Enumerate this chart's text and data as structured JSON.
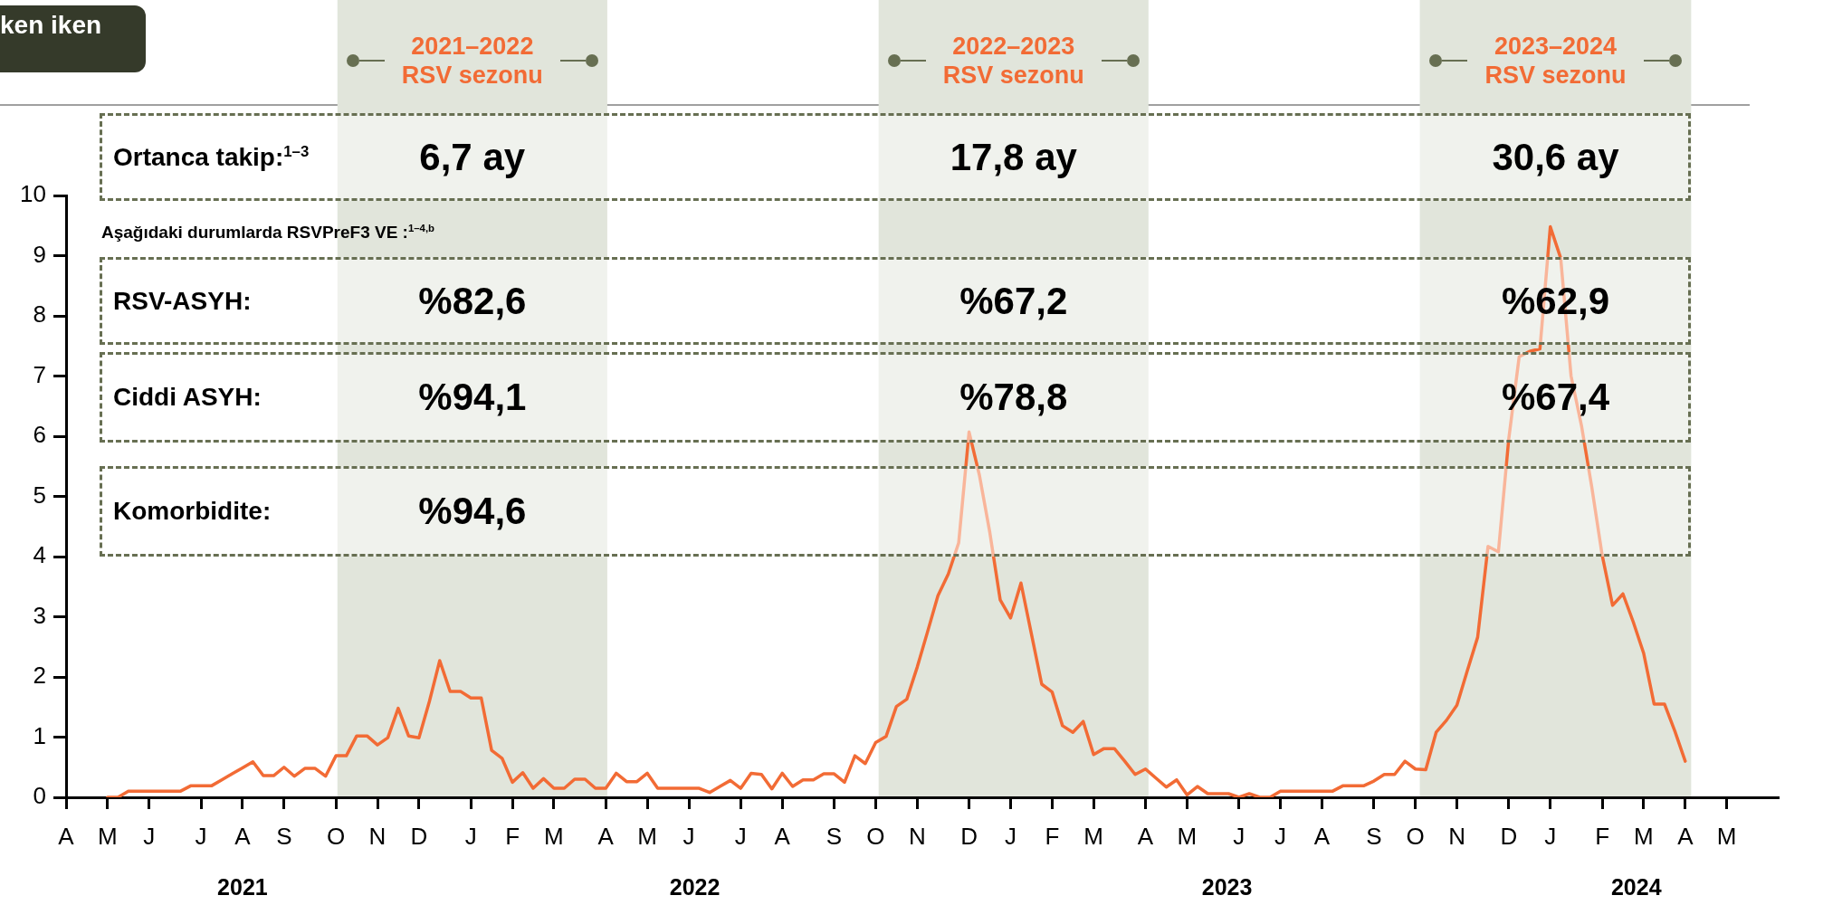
{
  "chart_data": {
    "type": "line",
    "categories": [
      "A",
      null,
      null,
      null,
      "M",
      null,
      null,
      null,
      "J",
      null,
      null,
      null,
      null,
      "J",
      null,
      null,
      null,
      "A",
      null,
      null,
      null,
      "S",
      null,
      null,
      null,
      null,
      "O",
      null,
      null,
      null,
      "N",
      null,
      null,
      null,
      "D",
      null,
      null,
      null,
      null,
      "J",
      null,
      null,
      null,
      "F",
      null,
      null,
      null,
      "M",
      null,
      null,
      null,
      null,
      "A",
      null,
      null,
      null,
      "M",
      null,
      null,
      null,
      "J",
      null,
      null,
      null,
      null,
      "J",
      null,
      null,
      null,
      "A",
      null,
      null,
      null,
      null,
      "S",
      null,
      null,
      null,
      "O",
      null,
      null,
      null,
      "N",
      null,
      null,
      null,
      null,
      "D",
      null,
      null,
      null,
      "J",
      null,
      null,
      null,
      "F",
      null,
      null,
      null,
      "M",
      null,
      null,
      null,
      null,
      "A",
      null,
      null,
      null,
      "M",
      null,
      null,
      null,
      null,
      "J",
      null,
      null,
      null,
      "J",
      null,
      null,
      null,
      "A",
      null,
      null,
      null,
      null,
      "S",
      null,
      null,
      null,
      "O",
      null,
      null,
      null,
      "N",
      null,
      null,
      null,
      null,
      "D",
      null,
      null,
      null,
      "J",
      null,
      null,
      null,
      null,
      "F",
      null,
      null,
      null,
      "M",
      null,
      null,
      null,
      "A",
      null,
      null,
      null,
      "M",
      null,
      null,
      null,
      null,
      null
    ],
    "series": [
      {
        "color": "#f26b35",
        "values": [
          null,
          null,
          null,
          null,
          0,
          0,
          0.1,
          0.1,
          0.1,
          0.1,
          0.1,
          0.1,
          0.19,
          0.19,
          0.19,
          0.29,
          0.39,
          0.49,
          0.59,
          0.36,
          0.36,
          0.5,
          0.35,
          0.48,
          0.48,
          0.35,
          0.69,
          0.69,
          1.02,
          1.02,
          0.87,
          0.99,
          1.48,
          1.02,
          0.99,
          1.59,
          2.27,
          1.76,
          1.76,
          1.65,
          1.65,
          0.78,
          0.65,
          0.25,
          0.41,
          0.15,
          0.31,
          0.15,
          0.15,
          0.3,
          0.3,
          0.15,
          0.15,
          0.4,
          0.26,
          0.26,
          0.4,
          0.15,
          0.15,
          0.15,
          0.15,
          0.15,
          0.08,
          0.18,
          0.28,
          0.15,
          0.4,
          0.38,
          0.14,
          0.4,
          0.18,
          0.29,
          0.29,
          0.39,
          0.39,
          0.25,
          0.69,
          0.56,
          0.91,
          1.01,
          1.51,
          1.63,
          2.16,
          2.75,
          3.35,
          3.71,
          4.23,
          6.07,
          5.35,
          4.4,
          3.28,
          2.98,
          3.56,
          2.72,
          1.88,
          1.75,
          1.19,
          1.08,
          1.26,
          0.71,
          0.81,
          0.81,
          0.6,
          0.38,
          0.47,
          0.32,
          0.17,
          0.29,
          0.04,
          0.18,
          0.06,
          0.06,
          0.06,
          0,
          0.06,
          0,
          0,
          0.1,
          0.1,
          0.1,
          0.1,
          0.1,
          0.1,
          0.19,
          0.19,
          0.19,
          0.27,
          0.38,
          0.38,
          0.6,
          0.47,
          0.46,
          1.08,
          1.28,
          1.53,
          2.1,
          2.66,
          4.17,
          4.08,
          5.96,
          7.32,
          7.41,
          7.45,
          9.48,
          8.96,
          7.0,
          6.18,
          5.15,
          4.02,
          3.19,
          3.38,
          2.91,
          2.39,
          1.55,
          1.55,
          1.1,
          0.6,
          null,
          null,
          null,
          null,
          null,
          null,
          null,
          null,
          null
        ]
      }
    ],
    "x2lim": [
      "2021-04-01",
      "2024-05-30"
    ],
    "x2ticks": [
      {
        "value": "2021-07-29",
        "label": "2021"
      },
      {
        "value": "2022-05-30",
        "label": "2022"
      },
      {
        "value": "2023-05-24",
        "label": "2023"
      },
      {
        "value": "2024-02-24",
        "label": "2024"
      }
    ],
    "ylim": [
      0,
      10
    ],
    "yticks": [
      0,
      1,
      2,
      3,
      4,
      5,
      6,
      7,
      8,
      9,
      10
    ],
    "bands": [
      {
        "axis": "x2",
        "from": "2021-10-01",
        "to": "2022-04-01",
        "label": "2021–2022\nRSV sezonu",
        "color": "#e1e5db"
      },
      {
        "axis": "x2",
        "from": "2022-10-01",
        "to": "2023-04-01",
        "label": "2022–2023\nRSV sezonu",
        "color": "#e1e5db"
      },
      {
        "axis": "x2",
        "from": "2023-10-01",
        "to": "2024-04-01",
        "label": "2023–2024\nRSV sezonu",
        "color": "#e1e5db"
      }
    ],
    "annotations": [
      "Ortanca takip:$^{1–3}$",
      "6,7 ay",
      "17,8 ay",
      "30,6 ay",
      "Aşağıdaki durumlarda RSVPreF3 VE :$^{1–4,b}$",
      "RSV-ASYH:",
      "%82,6",
      "%67,2",
      "%62,9",
      "Ciddi ASYH:",
      "%94,1",
      "%78,8",
      "%67,4",
      "Komorbidite:",
      "%94,6",
      "ken iken"
    ]
  }
}
